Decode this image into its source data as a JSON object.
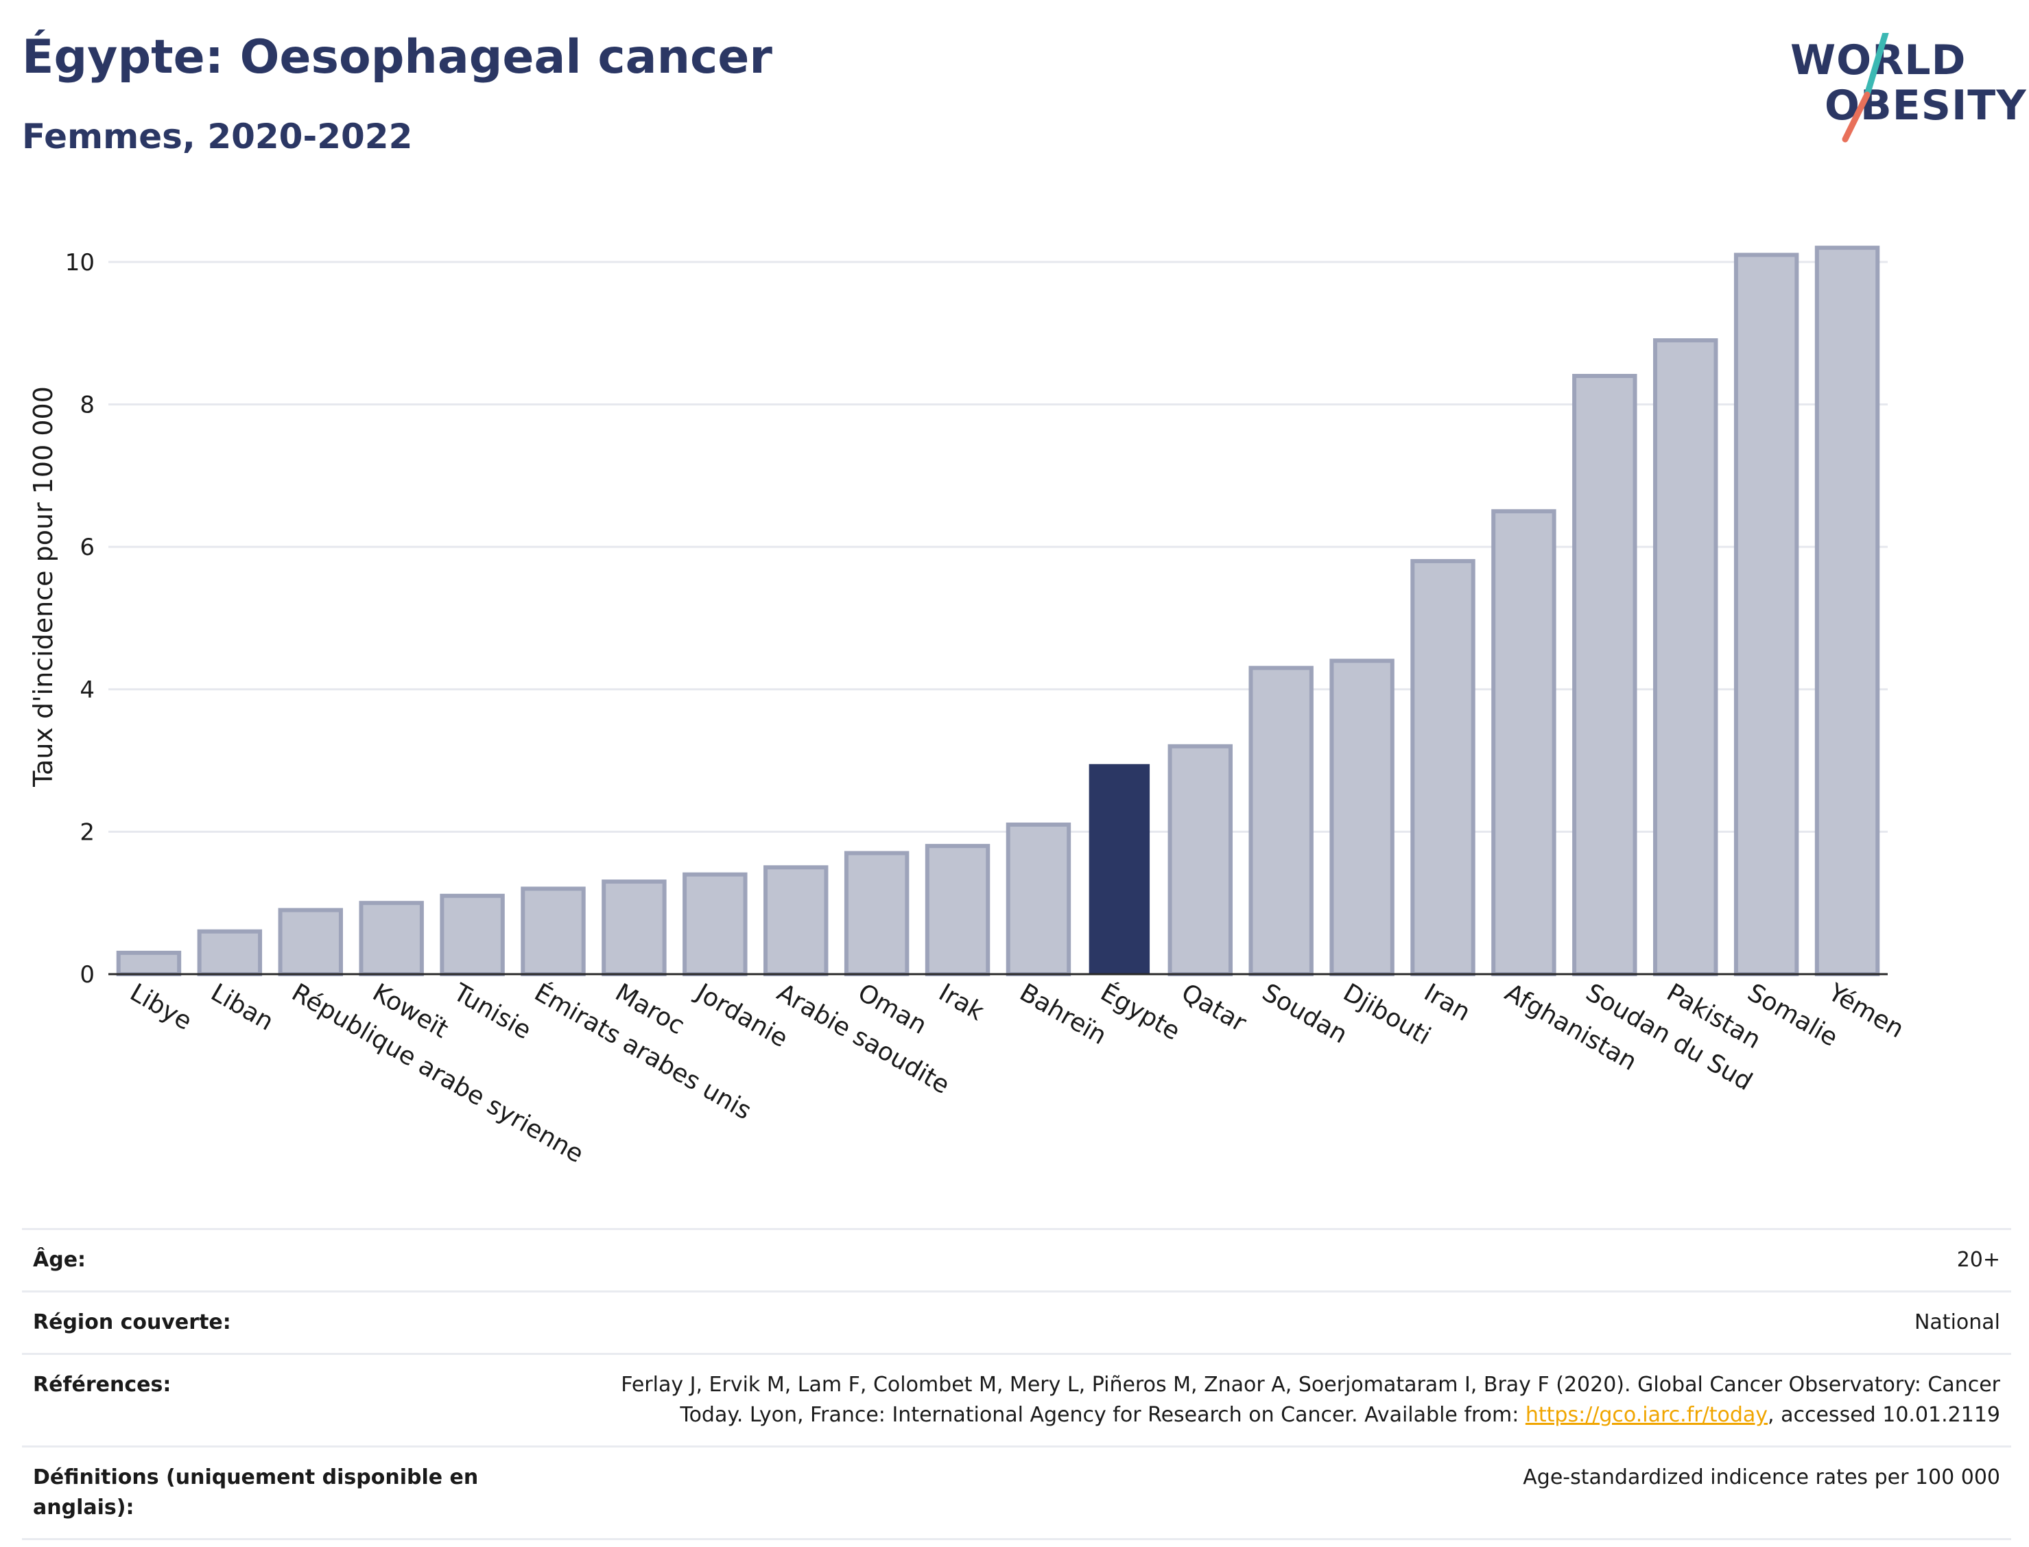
{
  "header": {
    "title": "Égypte: Oesophageal cancer",
    "subtitle": "Femmes, 2020-2022",
    "logo_line1": "WORLD",
    "logo_line2": "OBESITY"
  },
  "colors": {
    "highlight": "#2b3764",
    "bar": "#bfc3d1",
    "bar_edge": "#9da3ba",
    "logo_teal": "#3bb8b3",
    "logo_coral": "#e8705a"
  },
  "chart_data": {
    "type": "bar",
    "title": "",
    "xlabel": "",
    "ylabel": "Taux d'incidence pour 100 000",
    "ylim": [
      0,
      10.5
    ],
    "yticks": [
      0,
      2,
      4,
      6,
      8,
      10
    ],
    "grid": true,
    "highlight": "Égypte",
    "categories": [
      "Libye",
      "Liban",
      "République arabe syrienne",
      "Koweït",
      "Tunisie",
      "Émirats arabes unis",
      "Maroc",
      "Jordanie",
      "Arabie saoudite",
      "Oman",
      "Irak",
      "Bahreïn",
      "Égypte",
      "Qatar",
      "Soudan",
      "Djibouti",
      "Iran",
      "Afghanistan",
      "Soudan du Sud",
      "Pakistan",
      "Somalie",
      "Yémen"
    ],
    "values": [
      0.3,
      0.6,
      0.9,
      1.0,
      1.1,
      1.2,
      1.3,
      1.4,
      1.5,
      1.7,
      1.8,
      2.1,
      2.95,
      3.2,
      4.3,
      4.4,
      5.8,
      6.5,
      8.4,
      8.9,
      10.1,
      10.2
    ]
  },
  "meta": [
    {
      "key": "Âge:",
      "value": "20+"
    },
    {
      "key": "Région couverte:",
      "value": "National"
    },
    {
      "key": "Références:",
      "value_line1": "Ferlay J, Ervik M, Lam F, Colombet M, Mery L, Piñeros M, Znaor A, Soerjomataram I, Bray F (2020). Global Cancer Observatory: Cancer",
      "value_line2_a": "Today. Lyon, France: International Agency for Research on Cancer. Available from: ",
      "link": "https://gco.iarc.fr/today",
      "value_line2_b": ", accessed 10.01.2119"
    },
    {
      "key": "Définitions (uniquement disponible en anglais):",
      "value": "Age-standardized indicence rates per 100 000"
    }
  ]
}
